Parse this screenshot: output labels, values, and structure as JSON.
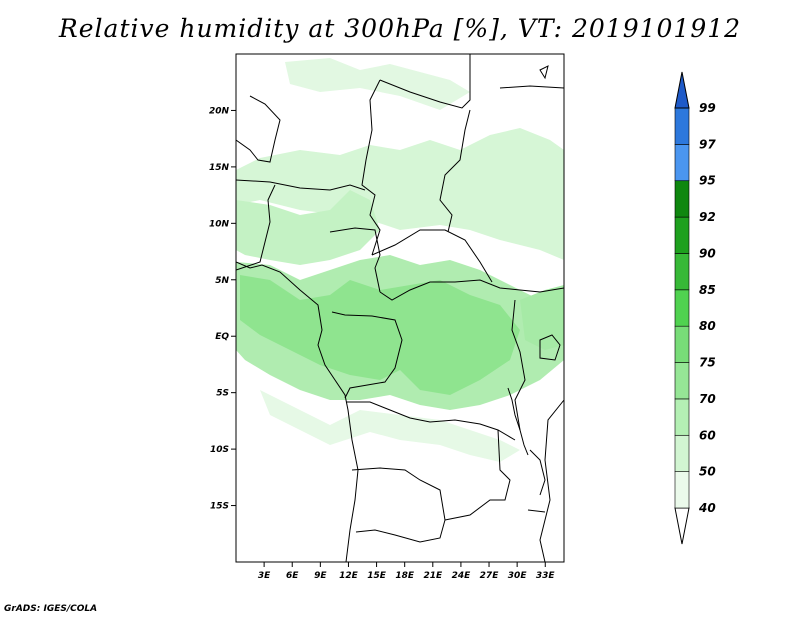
{
  "title": "Relative humidity at 300hPa [%], VT: 2019101912",
  "credit": "GrADS: IGES/COLA",
  "lat_labels": [
    "20N",
    "15N",
    "10N",
    "5N",
    "EQ",
    "5S",
    "10S",
    "15S"
  ],
  "lat_values": [
    20,
    15,
    10,
    5,
    0,
    -5,
    -10,
    -15
  ],
  "lon_labels": [
    "3E",
    "6E",
    "9E",
    "12E",
    "15E",
    "18E",
    "21E",
    "24E",
    "27E",
    "30E",
    "33E"
  ],
  "lon_values": [
    3,
    6,
    9,
    12,
    15,
    18,
    21,
    24,
    27,
    30,
    33
  ],
  "map_extent": {
    "lon_min": 0,
    "lon_max": 35,
    "lat_min": -20,
    "lat_max": 25
  },
  "colorbar": {
    "labels": [
      "40",
      "50",
      "60",
      "70",
      "75",
      "80",
      "85",
      "90",
      "92",
      "95",
      "97",
      "99"
    ],
    "colors": [
      "#ffffff",
      "#ebfaeb",
      "#d2f5d2",
      "#b4f0b4",
      "#96e696",
      "#78dc78",
      "#50d250",
      "#37b937",
      "#1ea01e",
      "#0f870f",
      "#4b96f0",
      "#2d78dc",
      "#1e5ac8"
    ]
  },
  "palette": {
    "land": "#ffffff",
    "border": "#000000",
    "rh_low": "#d2f5d2",
    "rh_mid": "#a6eaa6",
    "rh_high": "#78dc78"
  }
}
